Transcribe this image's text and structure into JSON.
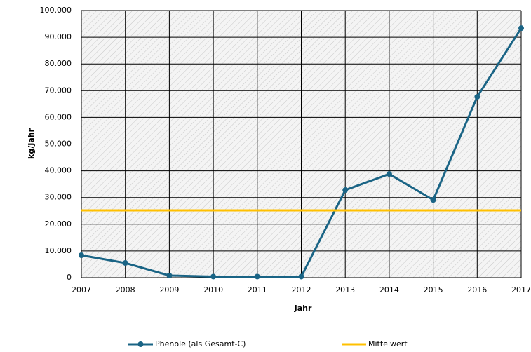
{
  "chart_data": {
    "type": "line",
    "x": [
      2007,
      2008,
      2009,
      2010,
      2011,
      2012,
      2013,
      2014,
      2015,
      2016,
      2017
    ],
    "series": [
      {
        "name": "Phenole (als Gesamt-C)",
        "color": "#1a6485",
        "marker": true,
        "values": [
          8400,
          5500,
          800,
          400,
          400,
          400,
          32800,
          38800,
          29100,
          67700,
          93400
        ]
      },
      {
        "name": "Mittelwert",
        "color": "#ffc000",
        "marker": false,
        "values": [
          25200,
          25200,
          25200,
          25200,
          25200,
          25200,
          25200,
          25200,
          25200,
          25200,
          25200
        ]
      }
    ],
    "xlabel": "Jahr",
    "ylabel": "kg/Jahr",
    "xlim": [
      2007,
      2017
    ],
    "xticks": [
      2007,
      2008,
      2009,
      2010,
      2011,
      2012,
      2013,
      2014,
      2015,
      2016,
      2017
    ],
    "ylim": [
      0,
      100000
    ],
    "yticks": [
      0,
      {
        "value": 10000,
        "label": "10.000"
      },
      {
        "value": 20000,
        "label": "20.000"
      },
      {
        "value": 30000,
        "label": "30.000"
      },
      {
        "value": 40000,
        "label": "40.000"
      },
      {
        "value": 50000,
        "label": "50.000"
      },
      {
        "value": 60000,
        "label": "60.000"
      },
      {
        "value": 70000,
        "label": "70.000"
      },
      {
        "value": 80000,
        "label": "80.000"
      },
      {
        "value": 90000,
        "label": "90.000"
      },
      {
        "value": 100000,
        "label": "100.000"
      }
    ],
    "grid": true,
    "legend": "bottom"
  }
}
